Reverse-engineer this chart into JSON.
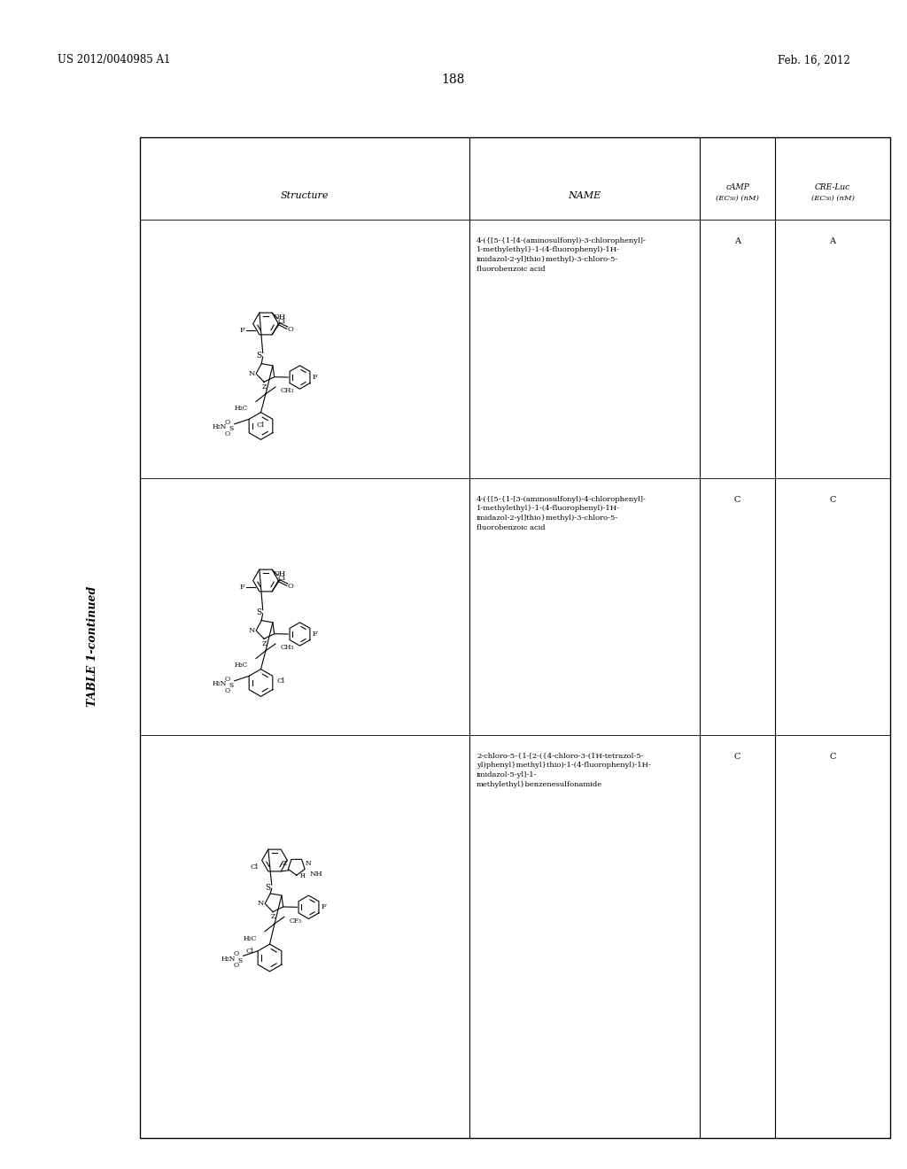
{
  "patent_number": "US 2012/0040985 A1",
  "date": "Feb. 16, 2012",
  "page_number": "188",
  "table_title": "TABLE 1-continued",
  "col_headers": [
    "Structure",
    "NAME",
    "cAMP\n(EC50) (nM)",
    "CRE-Luc\n(EC50) (nM)"
  ],
  "rows": [
    {
      "cAMP": "A",
      "CRE_Luc": "A",
      "name_lines": [
        "4-({[5-{1-[4-(aminosulfonyl)-3-chlorophenyl]-",
        "1-methylethyl}-1-(4-fluorophenyl)-1H-",
        "imidazol-2-yl]thio}methyl)-3-chloro-5-",
        "fluorobenzoic acid"
      ]
    },
    {
      "cAMP": "C",
      "CRE_Luc": "C",
      "name_lines": [
        "4-({[5-{1-[3-(aminosulfonyl)-4-chlorophenyl]-",
        "1-methylethyl}-1-(4-fluorophenyl)-1H-",
        "imidazol-2-yl]thio}methyl)-3-chloro-5-",
        "fluorobenzoic acid"
      ]
    },
    {
      "cAMP": "C",
      "CRE_Luc": "C",
      "name_lines": [
        "2-chloro-5-{1-[2-({4-chloro-3-(1H-tetrazol-5-",
        "yl)phenyl}methyl}thio)-1-(4-fluorophenyl)-1H-",
        "imidazol-5-yl]-1-",
        "methylethyl}benzenesulfonamide"
      ]
    }
  ],
  "bg_color": "#ffffff",
  "text_color": "#000000"
}
